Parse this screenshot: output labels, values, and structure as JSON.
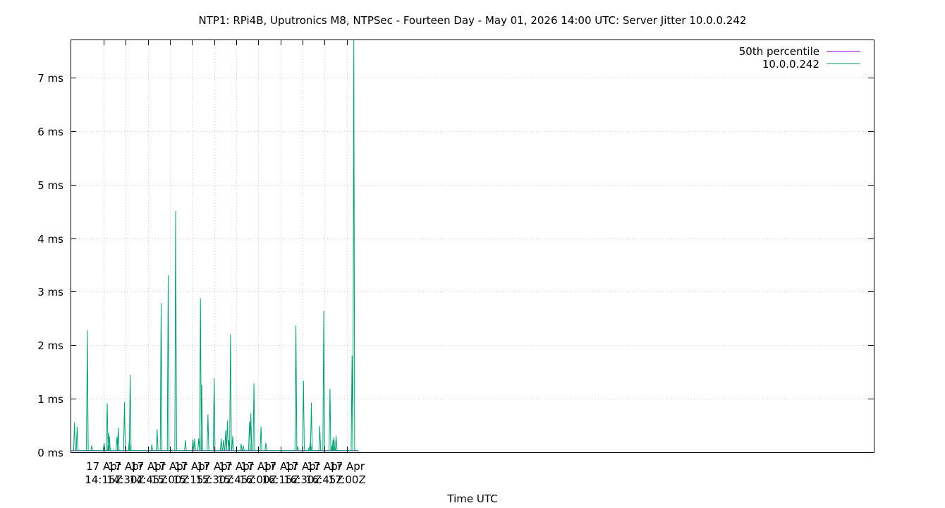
{
  "chart_data": {
    "type": "line",
    "title": "NTP1: RPi4B, Uputronics M8, NTPSec - Fourteen Day - May 01, 2026 14:00 UTC: Server Jitter 10.0.0.242",
    "xlabel": "Time UTC",
    "ylabel": "",
    "x_range_minutes": [
      7.5,
      67.5
    ],
    "ylim": [
      0,
      7.7
    ],
    "grid": true,
    "legend_position": "top-right",
    "x_ticks": [
      {
        "value": 15,
        "line1": "17 Apr",
        "line2": "14:15Z"
      },
      {
        "value": 20,
        "line1": "17 Apr",
        "line2": "14:30Z"
      },
      {
        "value": 25,
        "line1": "17 Apr",
        "line2": "14:45Z"
      },
      {
        "value": 30,
        "line1": "17 Apr",
        "line2": "15:00Z"
      },
      {
        "value": 35,
        "line1": "17 Apr",
        "line2": "15:15Z"
      },
      {
        "value": 40,
        "line1": "17 Apr",
        "line2": "15:30Z"
      },
      {
        "value": 45,
        "line1": "17 Apr",
        "line2": "15:45Z"
      },
      {
        "value": 50,
        "line1": "17 Apr",
        "line2": "16:00Z"
      },
      {
        "value": 55,
        "line1": "17 Apr",
        "line2": "16:15Z"
      },
      {
        "value": 60,
        "line1": "17 Apr",
        "line2": "16:30Z"
      },
      {
        "value": 65,
        "line1": "17 Apr",
        "line2": "16:45Z"
      },
      {
        "value": 70,
        "line1": "17 Apr",
        "line2": "17:00Z"
      }
    ],
    "y_ticks": [
      {
        "value": 0,
        "label": "0 ms"
      },
      {
        "value": 1,
        "label": "1 ms"
      },
      {
        "value": 2,
        "label": "2 ms"
      },
      {
        "value": 3,
        "label": "3 ms"
      },
      {
        "value": 4,
        "label": "4 ms"
      },
      {
        "value": 5,
        "label": "5 ms"
      },
      {
        "value": 6,
        "label": "6 ms"
      },
      {
        "value": 7,
        "label": "7 ms"
      }
    ],
    "series": [
      {
        "name": "50th percentile",
        "color": "#9400d3",
        "x": [
          7.5,
          72.7
        ],
        "y": [
          0.03,
          0.03
        ]
      },
      {
        "name": "10.0.0.242",
        "color": "#009e73",
        "baseline": 0.03,
        "x_end": 72.7,
        "spikes": [
          {
            "x": 8.4,
            "y": 0.55
          },
          {
            "x": 9.0,
            "y": 0.47
          },
          {
            "x": 11.3,
            "y": 2.27
          },
          {
            "x": 12.3,
            "y": 0.12
          },
          {
            "x": 15.1,
            "y": 0.17
          },
          {
            "x": 15.8,
            "y": 0.91
          },
          {
            "x": 16.1,
            "y": 0.35
          },
          {
            "x": 16.3,
            "y": 0.29
          },
          {
            "x": 18.0,
            "y": 0.28
          },
          {
            "x": 18.3,
            "y": 0.45
          },
          {
            "x": 19.7,
            "y": 0.93
          },
          {
            "x": 20.8,
            "y": 0.22
          },
          {
            "x": 21.0,
            "y": 1.44
          },
          {
            "x": 25.9,
            "y": 0.14
          },
          {
            "x": 27.1,
            "y": 0.42
          },
          {
            "x": 28.0,
            "y": 2.78
          },
          {
            "x": 29.6,
            "y": 3.3
          },
          {
            "x": 31.3,
            "y": 4.5
          },
          {
            "x": 33.5,
            "y": 0.22
          },
          {
            "x": 35.2,
            "y": 0.23
          },
          {
            "x": 35.6,
            "y": 0.25
          },
          {
            "x": 36.5,
            "y": 0.25
          },
          {
            "x": 36.9,
            "y": 2.87
          },
          {
            "x": 37.2,
            "y": 1.25
          },
          {
            "x": 38.6,
            "y": 0.7
          },
          {
            "x": 40.0,
            "y": 1.37
          },
          {
            "x": 41.6,
            "y": 0.25
          },
          {
            "x": 42.1,
            "y": 0.22
          },
          {
            "x": 42.6,
            "y": 0.4
          },
          {
            "x": 43.0,
            "y": 0.58
          },
          {
            "x": 43.3,
            "y": 0.22
          },
          {
            "x": 43.7,
            "y": 2.2
          },
          {
            "x": 44.2,
            "y": 0.3
          },
          {
            "x": 46.1,
            "y": 0.15
          },
          {
            "x": 46.6,
            "y": 0.12
          },
          {
            "x": 48.0,
            "y": 0.57
          },
          {
            "x": 48.3,
            "y": 0.72
          },
          {
            "x": 49.0,
            "y": 1.28
          },
          {
            "x": 50.6,
            "y": 0.47
          },
          {
            "x": 51.7,
            "y": 0.17
          },
          {
            "x": 58.5,
            "y": 2.36
          },
          {
            "x": 58.9,
            "y": 0.1
          },
          {
            "x": 60.2,
            "y": 1.33
          },
          {
            "x": 61.5,
            "y": 0.08
          },
          {
            "x": 61.8,
            "y": 0.2
          },
          {
            "x": 62.0,
            "y": 0.92
          },
          {
            "x": 63.9,
            "y": 0.48
          },
          {
            "x": 64.8,
            "y": 2.63
          },
          {
            "x": 66.2,
            "y": 1.18
          },
          {
            "x": 66.7,
            "y": 0.12
          },
          {
            "x": 66.9,
            "y": 0.22
          },
          {
            "x": 67.1,
            "y": 0.28
          },
          {
            "x": 67.6,
            "y": 0.3
          },
          {
            "x": 71.2,
            "y": 1.8
          },
          {
            "x": 71.6,
            "y": 7.7
          }
        ]
      }
    ]
  }
}
